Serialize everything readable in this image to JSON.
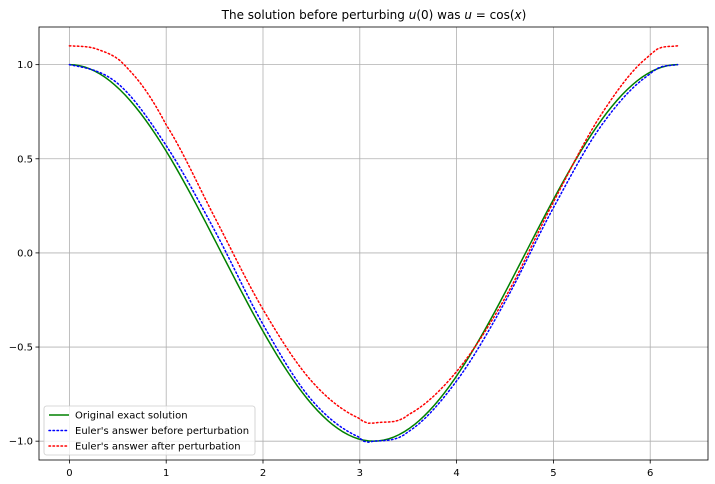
{
  "chart_data": {
    "type": "line",
    "title": "The solution before perturbing u(0) was u = cos(x)",
    "title_parts": {
      "prefix": "The solution before perturbing ",
      "u0": "u",
      "u0_rest": "(0) was ",
      "u": "u",
      "eq": " = cos(",
      "x": "x",
      "close": ")"
    },
    "xlabel": "",
    "ylabel": "",
    "xlim": [
      -0.314,
      6.597
    ],
    "ylim": [
      -1.1,
      1.2
    ],
    "xticks": [
      0,
      1,
      2,
      3,
      4,
      5,
      6
    ],
    "xtick_labels": [
      "0",
      "1",
      "2",
      "3",
      "4",
      "5",
      "6"
    ],
    "yticks": [
      -1.0,
      -0.5,
      0.0,
      0.5,
      1.0
    ],
    "ytick_labels": [
      "−1.0",
      "−0.5",
      "0.0",
      "0.5",
      "1.0"
    ],
    "grid": true,
    "legend_position": "lower-left",
    "x_domain": [
      0,
      6.2832
    ],
    "series": [
      {
        "name": "Original exact solution",
        "color": "#008000",
        "style": "solid",
        "formula": "cos(x)"
      },
      {
        "name": "Euler's answer before perturbation",
        "color": "#0000ff",
        "style": "dotted",
        "formula": "cos(x) shifted right ~0.05, ends at 1.0",
        "samples": {
          "x": [
            0,
            0.5,
            1.0,
            1.5,
            2.0,
            2.5,
            3.0,
            3.14,
            3.5,
            4.0,
            4.5,
            5.0,
            5.5,
            6.0,
            6.28
          ],
          "y": [
            1.0,
            0.9,
            0.57,
            0.12,
            -0.38,
            -0.78,
            -0.98,
            -1.0,
            -0.95,
            -0.68,
            -0.26,
            0.24,
            0.68,
            0.95,
            1.0
          ]
        }
      },
      {
        "name": "Euler's answer after perturbation",
        "color": "#ff0000",
        "style": "dotted",
        "samples": {
          "x": [
            0,
            0.3,
            0.6,
            1.0,
            1.5,
            2.0,
            2.5,
            3.0,
            3.2,
            3.5,
            4.0,
            4.5,
            5.0,
            5.5,
            6.0,
            6.28
          ],
          "y": [
            1.1,
            1.08,
            0.98,
            0.68,
            0.19,
            -0.3,
            -0.68,
            -0.88,
            -0.9,
            -0.86,
            -0.63,
            -0.24,
            0.27,
            0.74,
            1.05,
            1.1
          ]
        }
      }
    ]
  },
  "legend": {
    "items": [
      "Original exact solution",
      "Euler's answer before perturbation",
      "Euler's answer after perturbation"
    ]
  }
}
